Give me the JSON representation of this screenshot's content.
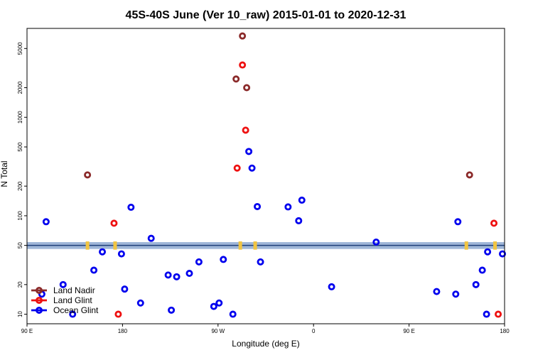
{
  "chart_data": {
    "type": "scatter",
    "title": "45S-40S June (Ver 10_raw)   2015-01-01 to 2020-12-31",
    "xlabel": "Longitude (deg E)",
    "ylabel": "N Total",
    "x_range_deg": [
      90,
      540
    ],
    "y_range": [
      8,
      8000
    ],
    "y_scale": "log",
    "x_ticks": [
      {
        "value": 90,
        "label": "90 E"
      },
      {
        "value": 180,
        "label": "180"
      },
      {
        "value": 270,
        "label": "90 W"
      },
      {
        "value": 360,
        "label": "0"
      },
      {
        "value": 450,
        "label": "90 E"
      },
      {
        "value": 540,
        "label": "180"
      }
    ],
    "y_ticks": [
      {
        "value": 10,
        "label": "10"
      },
      {
        "value": 20,
        "label": "20"
      },
      {
        "value": 50,
        "label": "50"
      },
      {
        "value": 100,
        "label": "100"
      },
      {
        "value": 200,
        "label": "200"
      },
      {
        "value": 500,
        "label": "500"
      },
      {
        "value": 1000,
        "label": "1000"
      },
      {
        "value": 2000,
        "label": "2000"
      },
      {
        "value": 5000,
        "label": "5000"
      }
    ],
    "reference_band": {
      "low": 46,
      "high": 54,
      "center": 50,
      "band_color": "#9fb6d8",
      "line_color": "#1f3f7a"
    },
    "highlight_color": "#f2c542",
    "highlights": [
      {
        "x": 147,
        "y": 50
      },
      {
        "x": 173,
        "y": 50
      },
      {
        "x": 291,
        "y": 50
      },
      {
        "x": 305,
        "y": 50
      },
      {
        "x": 504,
        "y": 50
      },
      {
        "x": 531,
        "y": 50
      }
    ],
    "legend_position": "bottom-left",
    "series": [
      {
        "name": "Land Nadir",
        "color": "#8b2a2a",
        "points": [
          {
            "x": 147,
            "y": 260
          },
          {
            "x": 293,
            "y": 6700
          },
          {
            "x": 287,
            "y": 2450
          },
          {
            "x": 297,
            "y": 2000
          },
          {
            "x": 507,
            "y": 260
          }
        ]
      },
      {
        "name": "Land Glint",
        "color": "#ee1111",
        "points": [
          {
            "x": 172,
            "y": 84
          },
          {
            "x": 176,
            "y": 10
          },
          {
            "x": 293,
            "y": 3400
          },
          {
            "x": 296,
            "y": 740
          },
          {
            "x": 288,
            "y": 305
          },
          {
            "x": 530,
            "y": 84
          },
          {
            "x": 534,
            "y": 10
          }
        ]
      },
      {
        "name": "Ocean Glint",
        "color": "#0000ee",
        "points": [
          {
            "x": 108,
            "y": 87
          },
          {
            "x": 104,
            "y": 16
          },
          {
            "x": 124,
            "y": 20
          },
          {
            "x": 133,
            "y": 10
          },
          {
            "x": 153,
            "y": 28
          },
          {
            "x": 161,
            "y": 43
          },
          {
            "x": 179,
            "y": 41
          },
          {
            "x": 182,
            "y": 18
          },
          {
            "x": 188,
            "y": 122
          },
          {
            "x": 197,
            "y": 13
          },
          {
            "x": 207,
            "y": 59
          },
          {
            "x": 223,
            "y": 25
          },
          {
            "x": 226,
            "y": 11
          },
          {
            "x": 231,
            "y": 24
          },
          {
            "x": 243,
            "y": 26
          },
          {
            "x": 252,
            "y": 34
          },
          {
            "x": 266,
            "y": 12
          },
          {
            "x": 271,
            "y": 13
          },
          {
            "x": 275,
            "y": 36
          },
          {
            "x": 284,
            "y": 10
          },
          {
            "x": 299,
            "y": 450
          },
          {
            "x": 302,
            "y": 305
          },
          {
            "x": 307,
            "y": 124
          },
          {
            "x": 310,
            "y": 34
          },
          {
            "x": 336,
            "y": 123
          },
          {
            "x": 346,
            "y": 89
          },
          {
            "x": 349,
            "y": 144
          },
          {
            "x": 377,
            "y": 19
          },
          {
            "x": 419,
            "y": 54
          },
          {
            "x": 476,
            "y": 17
          },
          {
            "x": 494,
            "y": 16
          },
          {
            "x": 496,
            "y": 87
          },
          {
            "x": 513,
            "y": 20
          },
          {
            "x": 523,
            "y": 10
          },
          {
            "x": 538,
            "y": 41
          },
          {
            "x": 519,
            "y": 28
          },
          {
            "x": 524,
            "y": 43
          }
        ]
      }
    ]
  }
}
